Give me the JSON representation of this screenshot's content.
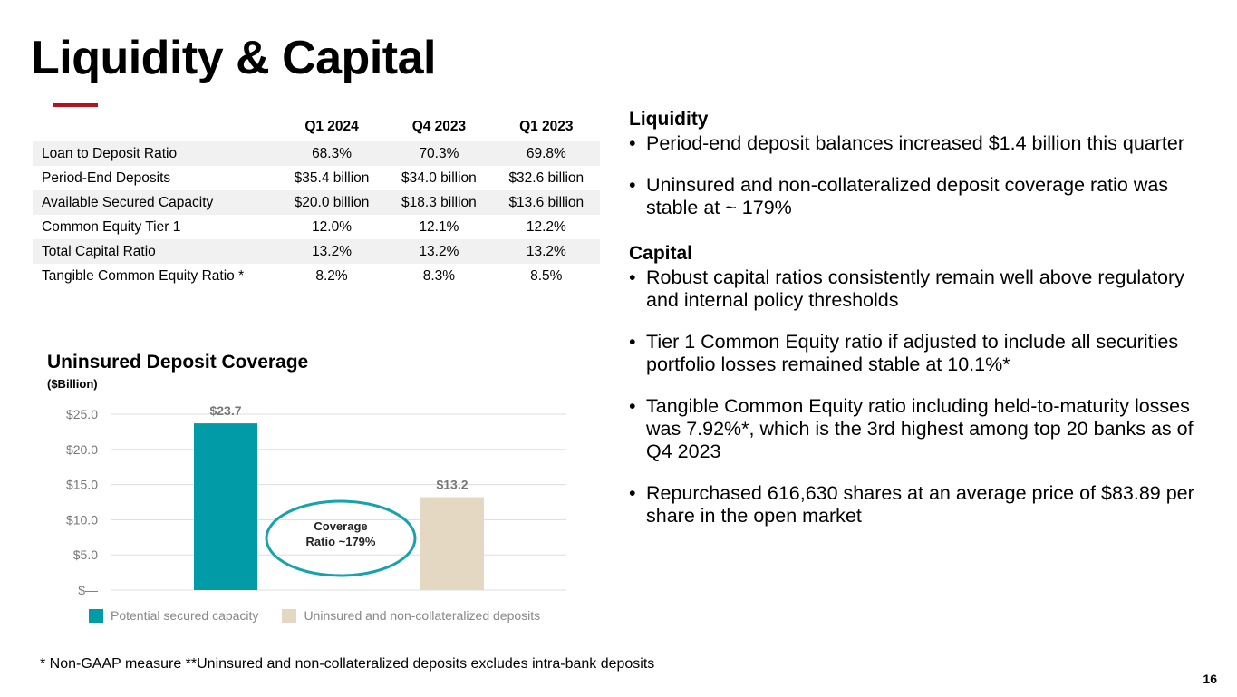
{
  "title": "Liquidity & Capital",
  "colors": {
    "accent": "#b5121b",
    "teal": "#009ba6",
    "beige": "#e5d8c3",
    "ellipse": "#18a2ad",
    "grid": "#dddddd",
    "axis_text": "#777777"
  },
  "table": {
    "headers": [
      "",
      "Q1 2024",
      "Q4 2023",
      "Q1 2023"
    ],
    "rows": [
      {
        "label": "Loan to Deposit Ratio",
        "values": [
          "68.3%",
          "70.3%",
          "69.8%"
        ]
      },
      {
        "label": "Period-End Deposits",
        "values": [
          "$35.4 billion",
          "$34.0 billion",
          "$32.6 billion"
        ]
      },
      {
        "label": "Available Secured Capacity",
        "values": [
          "$20.0 billion",
          "$18.3 billion",
          "$13.6 billion"
        ]
      },
      {
        "label": "Common Equity Tier 1",
        "values": [
          "12.0%",
          "12.1%",
          "12.2%"
        ]
      },
      {
        "label": "Total Capital Ratio",
        "values": [
          "13.2%",
          "13.2%",
          "13.2%"
        ]
      },
      {
        "label": "Tangible Common Equity Ratio *",
        "values": [
          "8.2%",
          "8.3%",
          "8.5%"
        ]
      }
    ]
  },
  "chart_data": {
    "type": "bar",
    "title": "Uninsured Deposit Coverage",
    "subtitle": "($Billion)",
    "categories": [
      "Potential secured capacity",
      "Uninsured and non-collateralized deposits"
    ],
    "values": [
      23.7,
      13.2
    ],
    "data_labels": [
      "$23.7",
      "$13.2"
    ],
    "ylim": [
      0,
      25
    ],
    "yticks": [
      0,
      5,
      10,
      15,
      20,
      25
    ],
    "ytick_labels": [
      "$—",
      "$5.0",
      "$10.0",
      "$15.0",
      "$20.0",
      "$25.0"
    ],
    "grid": true,
    "legend": "bottom",
    "annotation": {
      "line1": "Coverage",
      "line2": "Ratio ~179%"
    }
  },
  "liquidity": {
    "heading": "Liquidity",
    "bullets": [
      "Period-end deposit balances increased $1.4 billion this quarter",
      "Uninsured and non-collateralized deposit coverage ratio was stable at ~ 179%"
    ]
  },
  "capital": {
    "heading": "Capital",
    "bullets": [
      "Robust capital ratios consistently remain well above regulatory and internal policy thresholds",
      "Tier 1 Common Equity ratio if adjusted to include all securities portfolio losses remained stable at 10.1%*",
      "Tangible Common Equity ratio including held-to-maturity losses was 7.92%*, which is the 3rd highest among top 20 banks as of Q4 2023",
      "Repurchased 616,630 shares at an average price of $83.89 per share in the open market"
    ]
  },
  "footnote": "*   Non-GAAP measure  **Uninsured and non-collateralized deposits excludes intra-bank deposits",
  "page_number": "16"
}
